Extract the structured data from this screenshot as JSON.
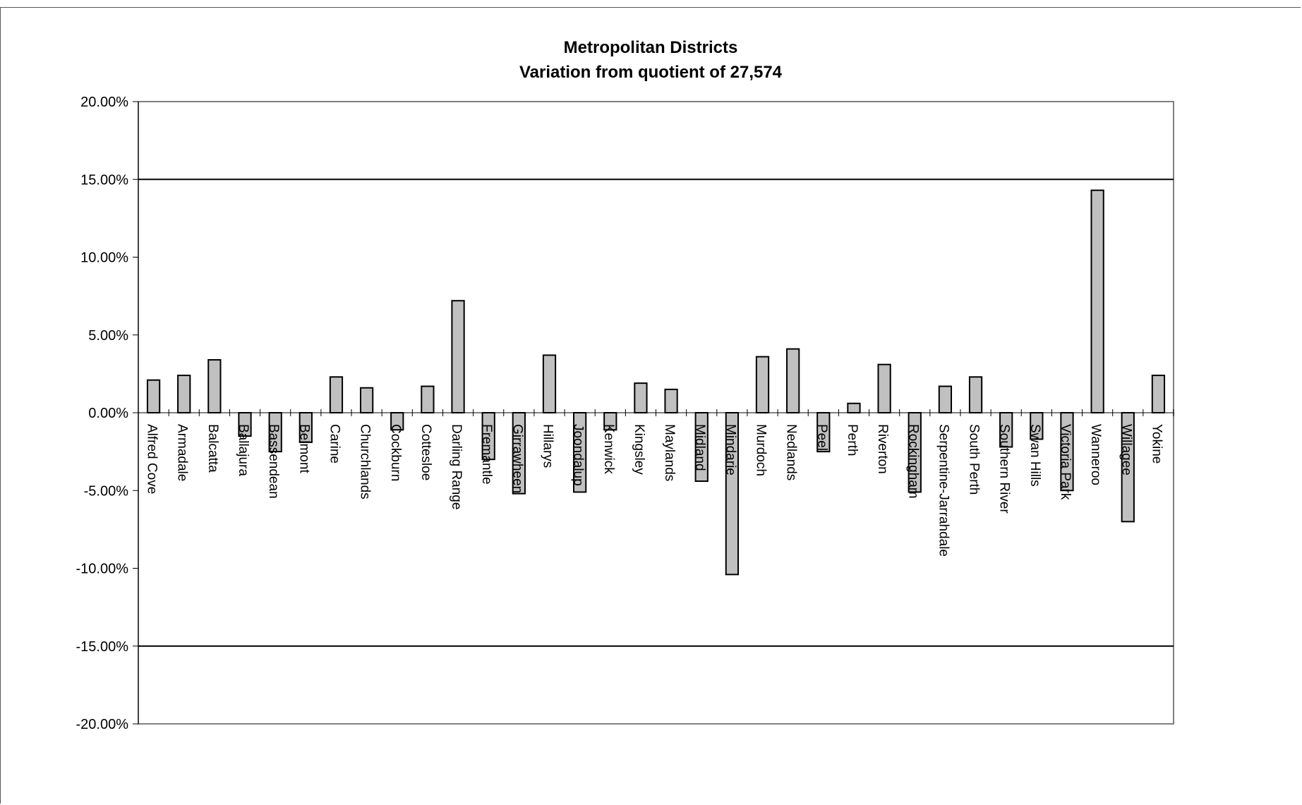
{
  "chart_data": {
    "type": "bar",
    "title": "Metropolitan Districts",
    "subtitle": "Variation from quotient of 27,574",
    "xlabel": "",
    "ylabel": "",
    "ylim": [
      -20,
      20
    ],
    "yticks": [
      20,
      15,
      10,
      5,
      0,
      -5,
      -10,
      -15,
      -20
    ],
    "ytick_labels": [
      "20.00%",
      "15.00%",
      "10.00%",
      "5.00%",
      "0.00%",
      "-5.00%",
      "-10.00%",
      "-15.00%",
      "-20.00%"
    ],
    "reference_lines": [
      15,
      -15
    ],
    "grid": false,
    "legend": "none",
    "bar_color": "#c0c0c0",
    "bar_edge_color": "#000000",
    "categories": [
      "Alfred Cove",
      "Armadale",
      "Balcatta",
      "Ballajura",
      "Bassendean",
      "Belmont",
      "Carine",
      "Churchlands",
      "Cockburn",
      "Cottesloe",
      "Darling Range",
      "Fremantle",
      "Girrawheen",
      "Hillarys",
      "Joondalup",
      "Kenwick",
      "Kingsley",
      "Maylands",
      "Midland",
      "Mindarie",
      "Murdoch",
      "Nedlands",
      "Peel",
      "Perth",
      "Riverton",
      "Rockingham",
      "Serpentine-Jarrahdale",
      "South Perth",
      "Southern River",
      "Swan Hills",
      "Victoria Park",
      "Wanneroo",
      "Willagee",
      "Yokine"
    ],
    "values": [
      2.1,
      2.4,
      3.4,
      -1.5,
      -2.5,
      -1.9,
      2.3,
      1.6,
      -1.1,
      1.7,
      7.2,
      -3.0,
      -5.2,
      3.7,
      -5.1,
      -1.1,
      1.9,
      1.5,
      -4.4,
      -10.4,
      3.6,
      4.1,
      -2.5,
      0.6,
      3.1,
      -5.1,
      1.7,
      2.3,
      -2.2,
      -1.7,
      -5.0,
      14.3,
      -7.0,
      2.4
    ]
  }
}
